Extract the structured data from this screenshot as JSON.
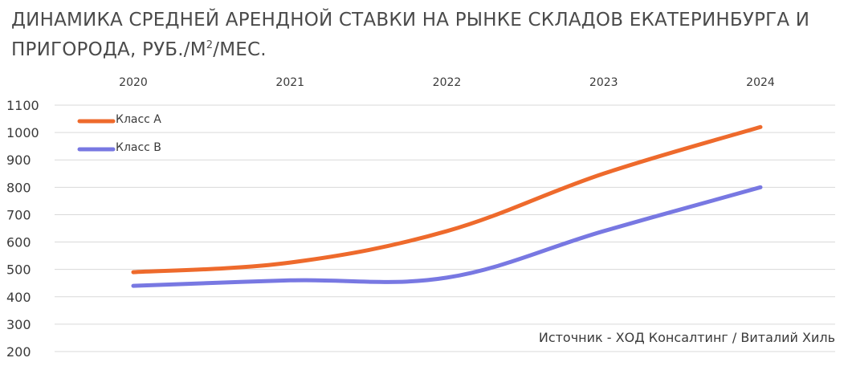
{
  "title": {
    "main": "ДИНАМИКА СРЕДНЕЙ АРЕНДНОЙ СТАВКИ НА РЫНКЕ СКЛАДОВ ЕКАТЕРИНБУРГА И ПРИГОРОДА, РУБ./М",
    "superscript": "2",
    "tail": "/МЕС."
  },
  "source": "Источник - ХОД Консалтинг / Виталий Хиль",
  "chart_data": {
    "type": "line",
    "title": "ДИНАМИКА СРЕДНЕЙ АРЕНДНОЙ СТАВКИ НА РЫНКЕ СКЛАДОВ ЕКАТЕРИНБУРГА И ПРИГОРОДА, РУБ./М2/МЕС.",
    "categories": [
      "2020",
      "2021",
      "2022",
      "2023",
      "2024"
    ],
    "yticks": [
      1100,
      1000,
      900,
      800,
      700,
      600,
      500,
      400,
      300,
      200
    ],
    "ylim": [
      200,
      1100
    ],
    "xaxis_position": "top",
    "grid": true,
    "legend_position": "top-left",
    "smooth": true,
    "series": [
      {
        "name": "Класс А",
        "color": "#ee6a2c",
        "values": [
          490,
          525,
          640,
          850,
          1020
        ]
      },
      {
        "name": "Класс В",
        "color": "#7878e2",
        "values": [
          440,
          460,
          470,
          640,
          800
        ]
      }
    ]
  }
}
